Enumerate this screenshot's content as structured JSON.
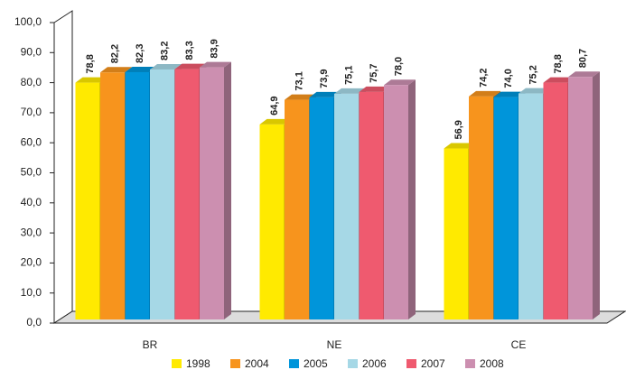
{
  "chart_data": {
    "type": "bar3d",
    "categories": [
      "BR",
      "NE",
      "CE"
    ],
    "series": [
      {
        "name": "1998",
        "color": "#ffea00",
        "values": [
          78.8,
          64.9,
          56.9
        ],
        "value_labels": [
          "78,8",
          "64,9",
          "56,9"
        ]
      },
      {
        "name": "2004",
        "color": "#f7941d",
        "values": [
          82.2,
          73.1,
          74.2
        ],
        "value_labels": [
          "82,2",
          "73,1",
          "74,2"
        ]
      },
      {
        "name": "2005",
        "color": "#0095da",
        "values": [
          82.3,
          73.9,
          74.0
        ],
        "value_labels": [
          "82,3",
          "73,9",
          "74,0"
        ]
      },
      {
        "name": "2006",
        "color": "#a6d8e6",
        "values": [
          83.2,
          75.1,
          75.2
        ],
        "value_labels": [
          "83,2",
          "75,1",
          "75,2"
        ]
      },
      {
        "name": "2007",
        "color": "#ef5a6f",
        "values": [
          83.3,
          75.7,
          78.8
        ],
        "value_labels": [
          "83,3",
          "75,7",
          "78,8"
        ]
      },
      {
        "name": "2008",
        "color": "#cc8fb0",
        "values": [
          83.9,
          78.0,
          80.7
        ],
        "value_labels": [
          "83,9",
          "78,0",
          "80,7"
        ]
      }
    ],
    "ylim": [
      0,
      100
    ],
    "yticks": [
      {
        "value": 0,
        "label": "0,0"
      },
      {
        "value": 10,
        "label": "10,0"
      },
      {
        "value": 20,
        "label": "20,0"
      },
      {
        "value": 30,
        "label": "30,0"
      },
      {
        "value": 40,
        "label": "40,0"
      },
      {
        "value": 50,
        "label": "50,0"
      },
      {
        "value": 60,
        "label": "60,0"
      },
      {
        "value": 70,
        "label": "70,0"
      },
      {
        "value": 80,
        "label": "80,0"
      },
      {
        "value": 90,
        "label": "90,0"
      },
      {
        "value": 100,
        "label": "100,0"
      }
    ]
  }
}
